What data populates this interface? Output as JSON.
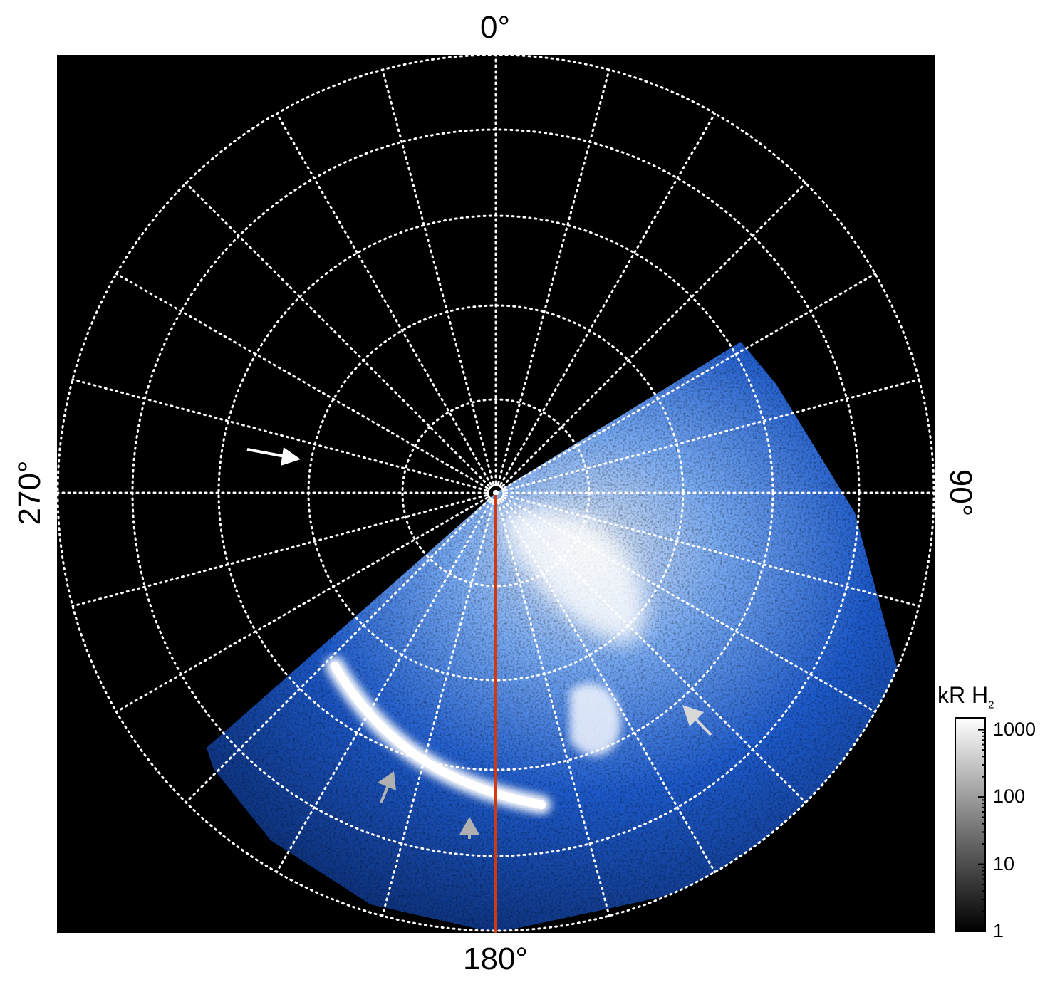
{
  "labels": {
    "top": "0°",
    "bottom": "180°",
    "left": "270°",
    "right": "90°"
  },
  "colorbar": {
    "unit": "kR H",
    "unit_subscript": "2",
    "ticks": [
      "1000",
      "100",
      "10",
      "1"
    ],
    "tick_values": [
      1000,
      100,
      10,
      1
    ],
    "scale": "log",
    "range": [
      1,
      1500
    ],
    "colors": [
      "#000000",
      "#7a7a7a",
      "#ffffff"
    ]
  },
  "image": {
    "background": "#000000",
    "aurora_colors": [
      "#0a2a6e",
      "#1f5fd6",
      "#6fa8ff",
      "#dceaff",
      "#ffffff"
    ],
    "grid_color": "#ffffff",
    "meridian_color": "#d03a12",
    "arrow_colors": {
      "primary": "#ffffff",
      "secondary": "#b0b0b0"
    }
  },
  "grid": {
    "meridian_step_deg": 15,
    "latitude_circles": 5
  }
}
